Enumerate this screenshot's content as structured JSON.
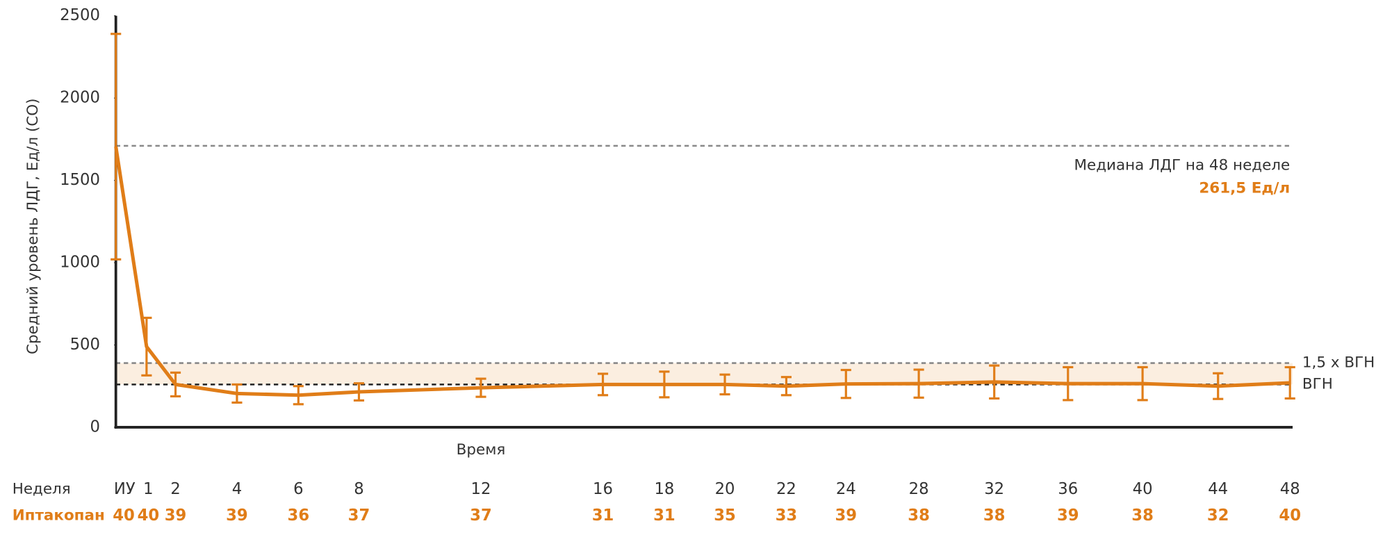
{
  "chart_data": {
    "type": "line",
    "y_label": "Средний уровень ЛДГ, Ед/л (СО)",
    "x_label": "Время",
    "categories_label": "Неделя",
    "categories": [
      "ИУ",
      "1",
      "2",
      "4",
      "6",
      "8",
      "12",
      "16",
      "18",
      "20",
      "22",
      "24",
      "28",
      "32",
      "36",
      "40",
      "44",
      "48"
    ],
    "series": [
      {
        "name": "Иптакопан",
        "color": "#e07d18",
        "values": [
          1705,
          490,
          260,
          205,
          195,
          215,
          240,
          260,
          260,
          260,
          250,
          263,
          265,
          275,
          265,
          265,
          250,
          270
        ],
        "errors": [
          685,
          175,
          72,
          55,
          55,
          52,
          55,
          65,
          78,
          60,
          55,
          85,
          85,
          100,
          100,
          100,
          78,
          95
        ],
        "n": [
          40,
          40,
          39,
          39,
          36,
          37,
          37,
          31,
          31,
          35,
          33,
          39,
          38,
          38,
          39,
          38,
          32,
          40
        ]
      }
    ],
    "ylim": [
      0,
      2500
    ],
    "yticks": [
      0,
      500,
      1000,
      1500,
      2000,
      2500
    ],
    "reference_lines": [
      {
        "value": 1710,
        "color": "#888888"
      },
      {
        "value": 390,
        "label": "1,5 x ВГН",
        "color": "#888888"
      },
      {
        "value": 260,
        "label": "ВГН",
        "color": "#222222"
      }
    ],
    "band_color": "#fbeee0",
    "annotation": [
      "Медиана ЛДГ на 48 неделе",
      "261,5 Ед/л"
    ]
  }
}
